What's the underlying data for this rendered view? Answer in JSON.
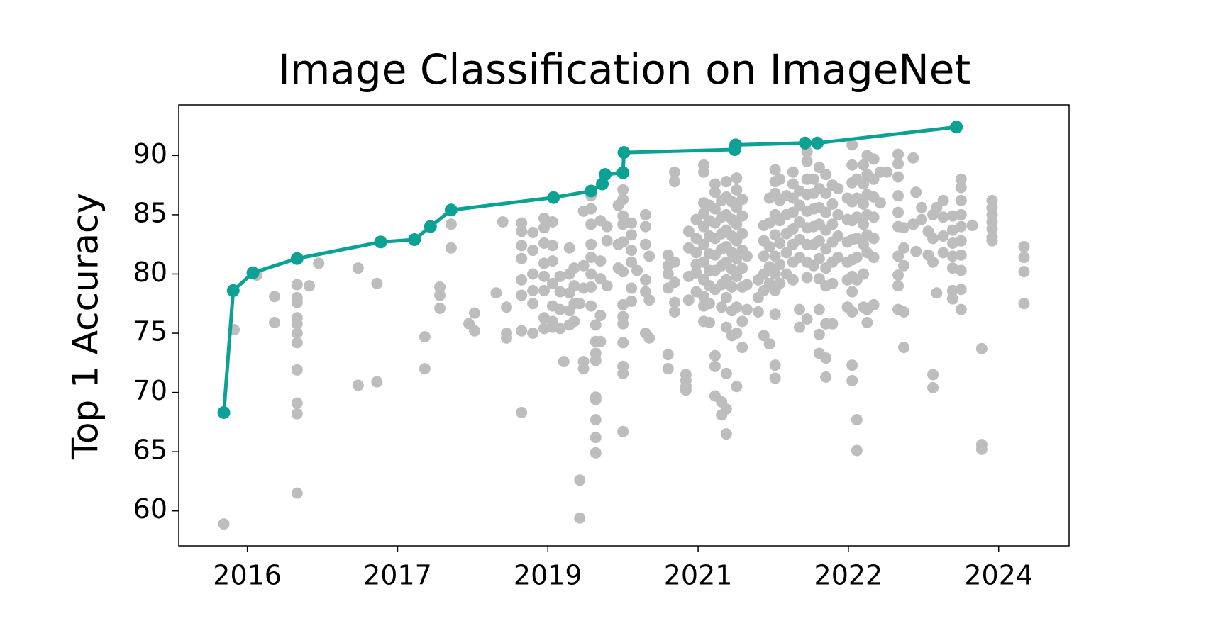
{
  "chart_data": {
    "type": "scatter",
    "title": "Image Classification on ImageNet",
    "y_label": "Top 1 Accuracy",
    "xlim": [
      2015.07,
      2024.55
    ],
    "xticks": [
      {
        "value": 2015.8,
        "label": "2016"
      },
      {
        "value": 2017.4,
        "label": "2017"
      },
      {
        "value": 2019.0,
        "label": "2019"
      },
      {
        "value": 2020.6,
        "label": "2021"
      },
      {
        "value": 2022.2,
        "label": "2022"
      },
      {
        "value": 2023.8,
        "label": "2024"
      }
    ],
    "ylim": [
      57.05,
      94.27
    ],
    "yticks": [
      60,
      65,
      70,
      75,
      80,
      85,
      90
    ],
    "grid": false,
    "series": [
      {
        "type": "scatter",
        "color": "#bdbdbd",
        "x": [
          2015.55,
          2015.66,
          2015.9,
          2016.09,
          2016.09,
          2016.33,
          2016.33,
          2016.33,
          2016.33,
          2016.33,
          2016.33,
          2016.33,
          2016.33,
          2016.33,
          2016.33,
          2016.33,
          2016.46,
          2016.56,
          2016.98,
          2016.98,
          2017.18,
          2017.18,
          2017.69,
          2017.69,
          2017.85,
          2017.85,
          2017.85,
          2017.97,
          2017.97,
          2018.16,
          2018.22,
          2018.22,
          2018.45,
          2018.52,
          2018.56,
          2018.56,
          2018.56,
          2018.72,
          2018.72,
          2018.72,
          2018.72,
          2018.72,
          2018.72,
          2018.72,
          2018.72,
          2018.84,
          2018.84,
          2018.84,
          2018.84,
          2018.84,
          2018.84,
          2018.96,
          2018.96,
          2018.96,
          2018.96,
          2018.96,
          2018.96,
          2018.96,
          2018.96,
          2019.05,
          2019.05,
          2019.05,
          2019.05,
          2019.05,
          2019.05,
          2019.05,
          2019.13,
          2019.13,
          2019.13,
          2019.13,
          2019.17,
          2019.23,
          2019.23,
          2019.23,
          2019.23,
          2019.23,
          2019.28,
          2019.28,
          2019.28,
          2019.28,
          2019.34,
          2019.34,
          2019.34,
          2019.38,
          2019.38,
          2019.38,
          2019.38,
          2019.38,
          2019.46,
          2019.46,
          2019.46,
          2019.46,
          2019.46,
          2019.46,
          2019.46,
          2019.46,
          2019.51,
          2019.51,
          2019.51,
          2019.51,
          2019.51,
          2019.51,
          2019.51,
          2019.51,
          2019.51,
          2019.56,
          2019.56,
          2019.56,
          2019.56,
          2019.56,
          2019.63,
          2019.63,
          2019.63,
          2019.75,
          2019.75,
          2019.75,
          2019.8,
          2019.8,
          2019.8,
          2019.8,
          2019.8,
          2019.8,
          2019.8,
          2019.8,
          2019.8,
          2019.8,
          2019.8,
          2019.8,
          2019.8,
          2019.89,
          2019.89,
          2019.89,
          2019.89,
          2019.89,
          2019.89,
          2019.95,
          2020.04,
          2020.04,
          2020.04,
          2020.04,
          2020.04,
          2020.04,
          2020.08,
          2020.08,
          2020.08,
          2020.28,
          2020.28,
          2020.28,
          2020.28,
          2020.28,
          2020.28,
          2020.35,
          2020.35,
          2020.35,
          2020.35,
          2020.35,
          2020.35,
          2020.47,
          2020.47,
          2020.47,
          2020.47,
          2020.5,
          2020.5,
          2020.5,
          2020.5,
          2020.58,
          2020.58,
          2020.58,
          2020.58,
          2020.58,
          2020.58,
          2020.66,
          2020.66,
          2020.66,
          2020.66,
          2020.66,
          2020.66,
          2020.66,
          2020.66,
          2020.66,
          2020.66,
          2020.66,
          2020.72,
          2020.72,
          2020.72,
          2020.72,
          2020.72,
          2020.72,
          2020.72,
          2020.72,
          2020.78,
          2020.78,
          2020.78,
          2020.78,
          2020.78,
          2020.78,
          2020.78,
          2020.78,
          2020.78,
          2020.78,
          2020.78,
          2020.85,
          2020.85,
          2020.85,
          2020.85,
          2020.85,
          2020.85,
          2020.85,
          2020.85,
          2020.85,
          2020.9,
          2020.9,
          2020.9,
          2020.9,
          2020.9,
          2020.9,
          2020.9,
          2020.9,
          2020.9,
          2020.9,
          2020.9,
          2020.9,
          2020.96,
          2020.96,
          2020.96,
          2020.96,
          2020.96,
          2020.96,
          2020.96,
          2020.96,
          2021.01,
          2021.01,
          2021.01,
          2021.01,
          2021.01,
          2021.01,
          2021.01,
          2021.01,
          2021.01,
          2021.01,
          2021.07,
          2021.07,
          2021.07,
          2021.07,
          2021.07,
          2021.07,
          2021.07,
          2021.07,
          2021.12,
          2021.12,
          2021.12,
          2021.24,
          2021.24,
          2021.24,
          2021.3,
          2021.3,
          2021.3,
          2021.3,
          2021.3,
          2021.3,
          2021.36,
          2021.36,
          2021.36,
          2021.36,
          2021.36,
          2021.36,
          2021.42,
          2021.42,
          2021.42,
          2021.42,
          2021.42,
          2021.42,
          2021.42,
          2021.42,
          2021.42,
          2021.42,
          2021.42,
          2021.47,
          2021.47,
          2021.47,
          2021.47,
          2021.47,
          2021.47,
          2021.54,
          2021.54,
          2021.54,
          2021.54,
          2021.54,
          2021.61,
          2021.61,
          2021.61,
          2021.61,
          2021.61,
          2021.61,
          2021.61,
          2021.61,
          2021.68,
          2021.68,
          2021.68,
          2021.68,
          2021.68,
          2021.68,
          2021.68,
          2021.76,
          2021.76,
          2021.76,
          2021.76,
          2021.76,
          2021.76,
          2021.76,
          2021.76,
          2021.76,
          2021.76,
          2021.83,
          2021.83,
          2021.83,
          2021.83,
          2021.83,
          2021.83,
          2021.89,
          2021.89,
          2021.89,
          2021.89,
          2021.89,
          2021.89,
          2021.89,
          2021.89,
          2021.89,
          2021.89,
          2021.96,
          2021.96,
          2021.96,
          2021.96,
          2021.96,
          2021.96,
          2021.96,
          2021.96,
          2021.96,
          2021.96,
          2022.03,
          2022.03,
          2022.03,
          2022.03,
          2022.03,
          2022.03,
          2022.03,
          2022.09,
          2022.09,
          2022.09,
          2022.09,
          2022.19,
          2022.19,
          2022.19,
          2022.19,
          2022.19,
          2022.19,
          2022.24,
          2022.24,
          2022.24,
          2022.24,
          2022.24,
          2022.24,
          2022.24,
          2022.24,
          2022.24,
          2022.24,
          2022.24,
          2022.24,
          2022.29,
          2022.29,
          2022.29,
          2022.29,
          2022.29,
          2022.29,
          2022.29,
          2022.29,
          2022.36,
          2022.36,
          2022.36,
          2022.36,
          2022.36,
          2022.36,
          2022.36,
          2022.4,
          2022.4,
          2022.4,
          2022.4,
          2022.4,
          2022.4,
          2022.4,
          2022.4,
          2022.47,
          2022.47,
          2022.47,
          2022.47,
          2022.47,
          2022.47,
          2022.47,
          2022.54,
          2022.54,
          2022.61,
          2022.73,
          2022.73,
          2022.73,
          2022.73,
          2022.73,
          2022.73,
          2022.73,
          2022.73,
          2022.73,
          2022.73,
          2022.79,
          2022.79,
          2022.79,
          2022.79,
          2022.79,
          2022.89,
          2022.89,
          2022.92,
          2022.92,
          2022.98,
          2022.98,
          2023.05,
          2023.05,
          2023.1,
          2023.1,
          2023.1,
          2023.1,
          2023.1,
          2023.14,
          2023.14,
          2023.21,
          2023.21,
          2023.21,
          2023.21,
          2023.31,
          2023.31,
          2023.31,
          2023.31,
          2023.31,
          2023.31,
          2023.31,
          2023.4,
          2023.4,
          2023.4,
          2023.4,
          2023.4,
          2023.4,
          2023.4,
          2023.4,
          2023.4,
          2023.4,
          2023.52,
          2023.62,
          2023.62,
          2023.62,
          2023.73,
          2023.73,
          2023.73,
          2023.73,
          2023.73,
          2023.73,
          2023.73,
          2024.07,
          2024.07,
          2024.07,
          2024.07
        ],
        "values": [
          58.9,
          75.3,
          79.9,
          78.1,
          75.9,
          79.1,
          78.0,
          77.6,
          76.3,
          75.8,
          75.0,
          74.2,
          71.9,
          69.1,
          68.2,
          61.5,
          79.0,
          80.9,
          70.6,
          80.5,
          79.2,
          70.9,
          74.7,
          72.0,
          78.9,
          78.2,
          77.1,
          84.2,
          82.2,
          75.8,
          76.7,
          75.2,
          78.4,
          84.4,
          77.2,
          75.0,
          74.6,
          84.3,
          83.6,
          82.4,
          81.3,
          79.5,
          78.2,
          75.2,
          68.3,
          83.5,
          82.0,
          80.0,
          78.6,
          77.5,
          75.0,
          84.7,
          83.9,
          82.6,
          80.9,
          79.8,
          78.6,
          76.3,
          75.4,
          84.4,
          82.4,
          81.1,
          79.2,
          77.3,
          76.0,
          75.5,
          79.8,
          78.5,
          77.0,
          75.4,
          72.6,
          82.2,
          80.0,
          78.4,
          76.9,
          75.7,
          80.5,
          79.0,
          77.5,
          76.0,
          77.5,
          62.6,
          59.4,
          85.3,
          80.7,
          78.8,
          72.6,
          72.0,
          86.6,
          85.5,
          84.2,
          82.5,
          81.4,
          80.0,
          78.9,
          77.3,
          75.7,
          74.3,
          73.3,
          72.7,
          69.6,
          69.4,
          67.7,
          66.2,
          64.9,
          84.5,
          81.1,
          79.6,
          76.5,
          74.3,
          84.0,
          82.8,
          79.0,
          85.8,
          82.5,
          80.5,
          87.1,
          86.3,
          84.9,
          84.2,
          82.7,
          80.2,
          77.4,
          76.4,
          75.8,
          74.2,
          72.2,
          71.6,
          66.7,
          84.3,
          83.3,
          82.0,
          81.0,
          78.8,
          77.7,
          80.3,
          85.0,
          84.0,
          82.5,
          79.5,
          78.5,
          75.0,
          81.5,
          77.8,
          74.6,
          81.6,
          80.7,
          80.0,
          78.8,
          73.2,
          72.0,
          88.6,
          87.8,
          81.0,
          79.3,
          77.6,
          76.8,
          71.5,
          71.0,
          70.5,
          70.2,
          83.6,
          82.2,
          79.8,
          77.8,
          84.6,
          83.0,
          81.8,
          80.8,
          80.1,
          78.5,
          89.2,
          88.6,
          86.0,
          85.1,
          84.0,
          82.5,
          81.0,
          79.5,
          78.1,
          77.3,
          76.0,
          85.8,
          84.5,
          83.2,
          81.7,
          80.3,
          79.0,
          77.5,
          75.9,
          87.6,
          86.9,
          85.5,
          84.3,
          83.0,
          81.6,
          80.3,
          78.7,
          73.1,
          72.2,
          69.7,
          86.2,
          84.8,
          83.4,
          82.1,
          80.7,
          79.1,
          77.2,
          69.2,
          68.1,
          87.8,
          86.5,
          85.0,
          83.7,
          82.3,
          81.0,
          79.5,
          78.0,
          75.5,
          71.6,
          68.6,
          66.5,
          86.1,
          84.6,
          83.2,
          81.8,
          80.4,
          78.9,
          76.9,
          74.8,
          88.1,
          87.1,
          85.6,
          84.2,
          82.8,
          81.3,
          79.8,
          77.2,
          75.0,
          70.5,
          86.3,
          84.9,
          83.4,
          82.0,
          80.5,
          78.9,
          76.0,
          73.8,
          81.5,
          79.1,
          77.0,
          79.5,
          78.0,
          76.8,
          84.1,
          82.8,
          81.5,
          80.0,
          78.6,
          74.8,
          86.4,
          84.3,
          82.3,
          80.6,
          79.2,
          74.1,
          88.8,
          87.8,
          86.8,
          85.0,
          83.3,
          81.5,
          80.0,
          78.6,
          76.6,
          72.3,
          71.2,
          88.0,
          86.2,
          84.5,
          82.6,
          80.8,
          79.2,
          86.6,
          85.0,
          83.4,
          81.8,
          80.0,
          88.6,
          87.6,
          86.4,
          85.2,
          83.8,
          82.5,
          81.0,
          79.5,
          87.0,
          85.8,
          84.4,
          82.9,
          81.4,
          77.0,
          75.5,
          90.3,
          89.5,
          88.0,
          86.7,
          85.3,
          83.9,
          82.5,
          81.0,
          79.7,
          76.2,
          88.0,
          86.8,
          85.5,
          84.0,
          82.5,
          80.7,
          89.0,
          87.2,
          85.6,
          84.2,
          82.8,
          81.3,
          79.6,
          77.0,
          74.9,
          73.3,
          88.4,
          86.8,
          85.2,
          83.7,
          82.1,
          80.5,
          79.0,
          75.8,
          72.9,
          71.3,
          87.5,
          85.9,
          84.2,
          82.7,
          81.0,
          79.2,
          75.8,
          87.2,
          85.0,
          83.2,
          81.4,
          86.4,
          84.6,
          82.7,
          81.0,
          79.5,
          77.2,
          90.9,
          89.2,
          87.7,
          86.1,
          84.5,
          82.9,
          81.2,
          79.8,
          78.5,
          76.8,
          72.3,
          71.0,
          88.0,
          86.4,
          84.8,
          83.0,
          81.4,
          79.5,
          67.7,
          65.1,
          89.2,
          87.6,
          85.9,
          84.2,
          82.5,
          80.0,
          77.2,
          90.0,
          88.4,
          86.7,
          85.0,
          83.3,
          81.8,
          77.0,
          75.9,
          89.7,
          88.0,
          86.5,
          84.8,
          83.0,
          81.4,
          77.4,
          88.6,
          86.0,
          88.6,
          90.1,
          89.3,
          88.2,
          86.6,
          85.2,
          84.0,
          81.5,
          79.9,
          79.0,
          77.0,
          83.9,
          82.2,
          80.7,
          76.8,
          73.8,
          89.8,
          84.2,
          86.9,
          81.9,
          85.6,
          84.6,
          83.6,
          81.6,
          85.0,
          83.0,
          81.0,
          71.5,
          70.4,
          78.4,
          85.6,
          86.2,
          84.8,
          83.2,
          81.8,
          84.9,
          83.7,
          82.6,
          81.5,
          80.5,
          78.6,
          77.9,
          88.0,
          87.3,
          86.2,
          85.0,
          84.0,
          82.8,
          81.6,
          80.3,
          78.7,
          77.0,
          84.1,
          73.7,
          65.6,
          65.2,
          86.2,
          85.6,
          85.0,
          84.4,
          83.8,
          83.1,
          82.8,
          82.3,
          81.4,
          80.2,
          77.5
        ]
      },
      {
        "type": "line",
        "color": "#0ca195",
        "x": [
          2015.55,
          2015.65,
          2015.86,
          2016.33,
          2017.22,
          2017.58,
          2017.75,
          2017.97,
          2019.06,
          2019.46,
          2019.58,
          2019.61,
          2019.8,
          2019.81,
          2020.99,
          2021.0,
          2021.74,
          2021.87,
          2023.35
        ],
        "values": [
          68.3,
          78.6,
          80.1,
          81.3,
          82.7,
          82.9,
          84.0,
          85.4,
          86.45,
          87.0,
          87.6,
          88.4,
          88.55,
          90.25,
          90.5,
          90.9,
          91.05,
          91.05,
          92.4
        ]
      }
    ]
  }
}
